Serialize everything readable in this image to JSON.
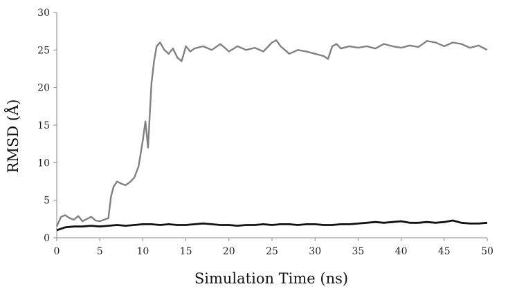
{
  "chart_data": {
    "type": "line",
    "xlabel": "Simulation Time (ns)",
    "ylabel": "RMSD (Å)",
    "xlim": [
      0,
      50
    ],
    "ylim": [
      0,
      30
    ],
    "xticks": [
      0,
      5,
      10,
      15,
      20,
      25,
      30,
      35,
      40,
      45,
      50
    ],
    "yticks": [
      0,
      5,
      10,
      15,
      20,
      25,
      30
    ],
    "grid": false,
    "legend": "none",
    "series": [
      {
        "color": "#808080",
        "x": [
          0,
          0.5,
          1,
          1.5,
          2,
          2.5,
          3,
          3.5,
          4,
          4.5,
          5,
          5.5,
          6,
          6.3,
          6.6,
          7,
          7.5,
          8,
          8.5,
          9,
          9.5,
          10,
          10.3,
          10.6,
          11,
          11.3,
          11.6,
          12,
          12.5,
          13,
          13.5,
          14,
          14.5,
          15,
          15.5,
          16,
          17,
          18,
          19,
          20,
          21,
          22,
          23,
          24,
          25,
          25.5,
          26,
          27,
          28,
          29,
          30,
          31,
          31.5,
          32,
          32.5,
          33,
          34,
          35,
          36,
          37,
          38,
          39,
          40,
          41,
          42,
          43,
          44,
          45,
          46,
          47,
          48,
          49,
          50
        ],
        "values": [
          1.5,
          2.8,
          3.0,
          2.6,
          2.4,
          2.9,
          2.2,
          2.5,
          2.8,
          2.3,
          2.2,
          2.4,
          2.6,
          5.5,
          6.8,
          7.5,
          7.2,
          7.0,
          7.4,
          8.0,
          9.5,
          13.0,
          15.5,
          12.0,
          20.5,
          23.5,
          25.5,
          26.0,
          25.0,
          24.5,
          25.2,
          24.0,
          23.5,
          25.5,
          24.8,
          25.2,
          25.5,
          25.0,
          25.8,
          24.8,
          25.5,
          25.0,
          25.3,
          24.8,
          26.0,
          26.3,
          25.5,
          24.5,
          25.0,
          24.8,
          24.5,
          24.2,
          23.8,
          25.5,
          25.8,
          25.2,
          25.5,
          25.3,
          25.5,
          25.2,
          25.8,
          25.5,
          25.3,
          25.6,
          25.4,
          26.2,
          26.0,
          25.5,
          26.0,
          25.8,
          25.3,
          25.6,
          25.0
        ]
      },
      {
        "color": "#111111",
        "x": [
          0,
          1,
          2,
          3,
          4,
          5,
          6,
          7,
          8,
          9,
          10,
          11,
          12,
          13,
          14,
          15,
          16,
          17,
          18,
          19,
          20,
          21,
          22,
          23,
          24,
          25,
          26,
          27,
          28,
          29,
          30,
          31,
          32,
          33,
          34,
          35,
          36,
          37,
          38,
          39,
          40,
          41,
          42,
          43,
          44,
          45,
          46,
          47,
          48,
          49,
          50
        ],
        "values": [
          1.0,
          1.4,
          1.5,
          1.5,
          1.6,
          1.5,
          1.6,
          1.7,
          1.6,
          1.7,
          1.8,
          1.8,
          1.7,
          1.8,
          1.7,
          1.7,
          1.8,
          1.9,
          1.8,
          1.7,
          1.7,
          1.6,
          1.7,
          1.7,
          1.8,
          1.7,
          1.8,
          1.8,
          1.7,
          1.8,
          1.8,
          1.7,
          1.7,
          1.8,
          1.8,
          1.9,
          2.0,
          2.1,
          2.0,
          2.1,
          2.2,
          2.0,
          2.0,
          2.1,
          2.0,
          2.1,
          2.3,
          2.0,
          1.9,
          1.9,
          2.0
        ]
      }
    ]
  }
}
